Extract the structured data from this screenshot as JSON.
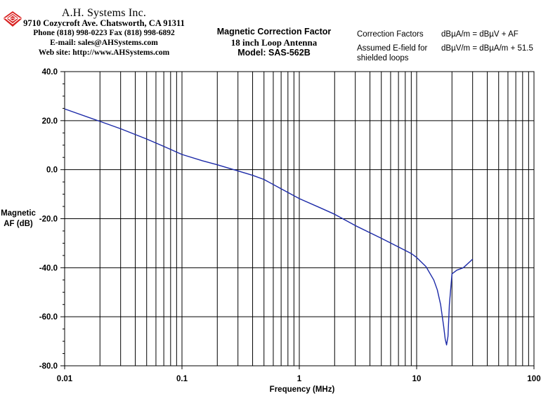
{
  "header": {
    "company_name": "A.H. Systems Inc.",
    "address": "9710 Cozycroft Ave. Chatsworth, CA 91311",
    "phone": "Phone (818) 998-0223 Fax (818) 998-6892",
    "email": "E-mail: sales@AHSystems.com",
    "website": "Web site: http://www.AHSystems.com"
  },
  "title": {
    "line1": "Magnetic Correction Factor",
    "line2": "18 inch Loop Antenna",
    "line3": "Model: SAS-562B"
  },
  "notes": {
    "correction_label": "Correction Factors",
    "correction_formula": "dBµA/m = dBµV + AF",
    "efield_label_1": "Assumed E-field for",
    "efield_label_2": "shielded loops",
    "efield_formula": "dBµV/m = dBµA/m + 51.5"
  },
  "colors": {
    "curve": "#1c2aa8",
    "grid": "#000000",
    "background": "#ffffff"
  },
  "chart_data": {
    "type": "line",
    "xlabel": "Frequency (MHz)",
    "ylabel_line1": "Magnetic",
    "ylabel_line2": "AF (dB)",
    "x_scale": "log",
    "xlim": [
      0.01,
      100
    ],
    "ylim": [
      -80,
      40
    ],
    "x_ticks": [
      "0.01",
      "0.1",
      "1",
      "10",
      "100"
    ],
    "y_ticks": [
      "40.0",
      "20.0",
      "0.0",
      "-20.0",
      "-40.0",
      "-60.0",
      "-80.0"
    ],
    "grid": true,
    "series": [
      {
        "x": [
          0.01,
          0.02,
          0.03,
          0.05,
          0.07,
          0.1,
          0.15,
          0.2,
          0.3,
          0.4,
          0.5,
          0.7,
          1,
          1.5,
          2,
          3,
          5,
          7,
          9,
          10,
          12,
          14,
          15,
          16,
          17,
          17.5,
          18,
          18.5,
          19,
          20,
          22,
          25,
          30
        ],
        "y": [
          24.8,
          19.7,
          16.7,
          12.5,
          9.5,
          6.2,
          3.6,
          2.0,
          -0.5,
          -2.3,
          -4.0,
          -7.8,
          -11.8,
          -15.5,
          -18.2,
          -22.8,
          -28.0,
          -31.5,
          -34.2,
          -35.8,
          -39.5,
          -45.0,
          -49.0,
          -55.0,
          -64.0,
          -69.0,
          -71.5,
          -68.0,
          -55.0,
          -42.5,
          -41.0,
          -40.0,
          -36.5
        ]
      }
    ]
  }
}
